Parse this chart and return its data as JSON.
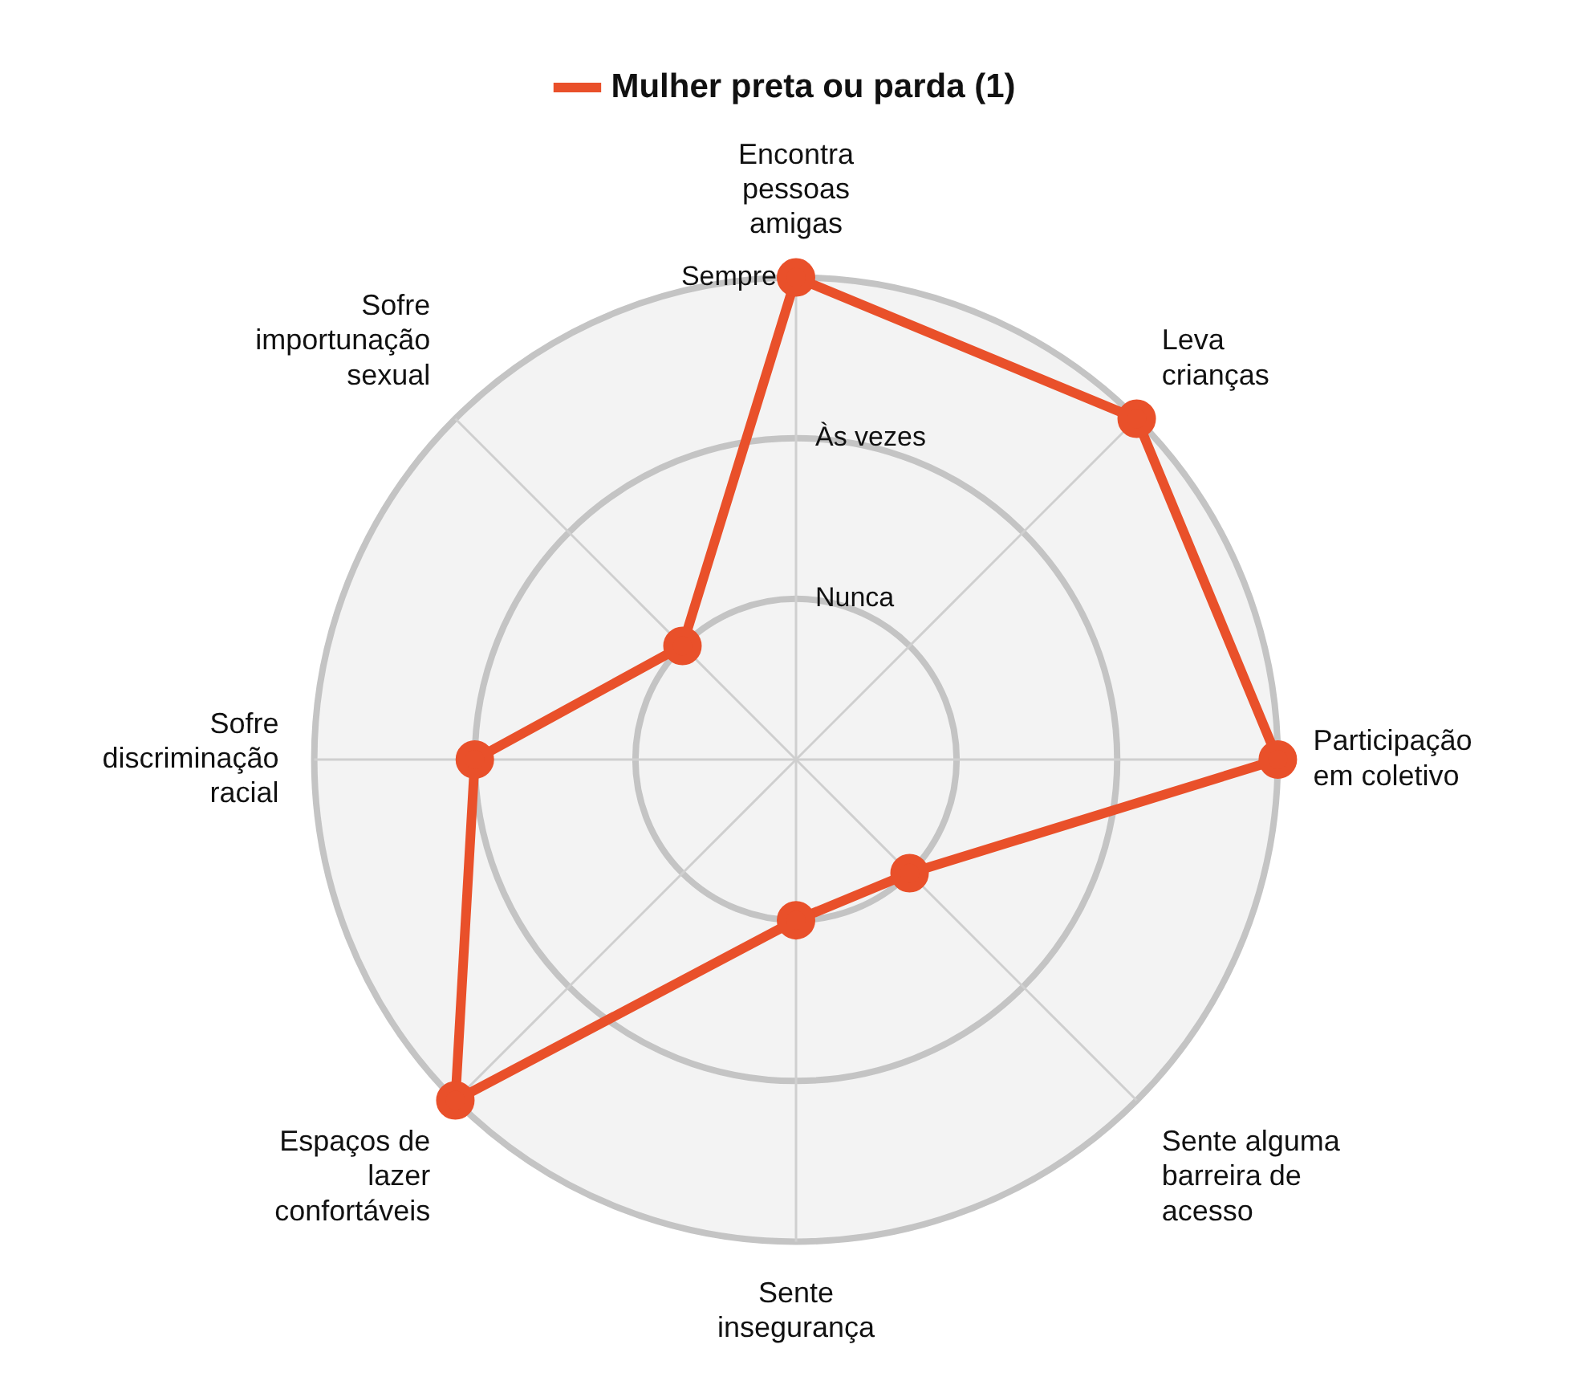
{
  "chart_data": {
    "type": "radar",
    "categories": [
      "Encontra pessoas amigas",
      "Leva crianças",
      "Participação em coletivo",
      "Sente alguma barreira de acesso",
      "Sente insegurança",
      "Espaços de lazer confortáveis",
      "Sofre discriminação racial",
      "Sofre importunação sexual"
    ],
    "series": [
      {
        "name": "Mulher preta ou parda (1)",
        "color": "#e9502a",
        "values": [
          3,
          3,
          3,
          1,
          1,
          3,
          2,
          1
        ]
      }
    ],
    "ylim": [
      0,
      3
    ],
    "yticks": [
      {
        "value": 1,
        "label": "Nunca"
      },
      {
        "value": 2,
        "label": "Às vezes"
      },
      {
        "value": 3,
        "label": "Sempre"
      }
    ],
    "grid": true,
    "legend": "top",
    "marker": "circle",
    "line_style": "solid"
  }
}
